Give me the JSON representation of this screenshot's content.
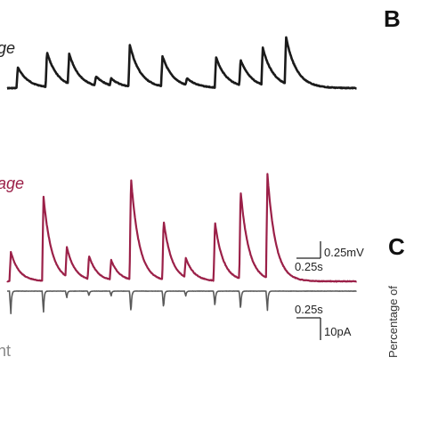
{
  "panels": {
    "b": {
      "label": "B"
    },
    "c": {
      "label": "C"
    }
  },
  "trace_labels": {
    "top": "ge",
    "middle": "age",
    "bottom": "nt"
  },
  "side_axis_label": "Percentage of",
  "scale_bars": {
    "voltage_amplitude": "0.25mV",
    "voltage_time": "0.25s",
    "current_time": "0.25s",
    "current_amplitude": "10pA"
  },
  "colors": {
    "trace_top": "#1a1a1a",
    "trace_middle": "#9b2048",
    "trace_bottom": "#5a5a5a",
    "text": "#222222",
    "middle_label": "#9b2048",
    "bottom_label": "#888888"
  },
  "chart_data": {
    "type": "line",
    "x_unit": "s",
    "series": [
      {
        "trace": "top",
        "baseline_mV": 0,
        "events": [
          {
            "t": 0.08,
            "amp": 0.09
          },
          {
            "t": 0.33,
            "amp": 0.15
          },
          {
            "t": 0.52,
            "amp": 0.13
          },
          {
            "t": 0.75,
            "amp": 0.04
          },
          {
            "t": 0.88,
            "amp": 0.03
          },
          {
            "t": 1.04,
            "amp": 0.18
          },
          {
            "t": 1.32,
            "amp": 0.13
          },
          {
            "t": 1.53,
            "amp": 0.03
          },
          {
            "t": 1.78,
            "amp": 0.13
          },
          {
            "t": 1.99,
            "amp": 0.11
          },
          {
            "t": 2.18,
            "amp": 0.16
          },
          {
            "t": 2.38,
            "amp": 0.2
          }
        ]
      },
      {
        "trace": "middle",
        "baseline_mV": 0,
        "events": [
          {
            "t": 0.02,
            "amp": 0.15
          },
          {
            "t": 0.3,
            "amp": 0.43
          },
          {
            "t": 0.5,
            "amp": 0.15
          },
          {
            "t": 0.69,
            "amp": 0.12
          },
          {
            "t": 0.88,
            "amp": 0.1
          },
          {
            "t": 1.05,
            "amp": 0.52
          },
          {
            "t": 1.33,
            "amp": 0.3
          },
          {
            "t": 1.52,
            "amp": 0.1
          },
          {
            "t": 1.77,
            "amp": 0.3
          },
          {
            "t": 1.99,
            "amp": 0.45
          },
          {
            "t": 2.22,
            "amp": 0.53
          }
        ]
      },
      {
        "trace": "bottom",
        "baseline_pA": 0,
        "events": [
          {
            "t": 0.02,
            "amp": -14
          },
          {
            "t": 0.3,
            "amp": -13
          },
          {
            "t": 0.5,
            "amp": -4
          },
          {
            "t": 0.69,
            "amp": -3
          },
          {
            "t": 0.88,
            "amp": -3
          },
          {
            "t": 1.05,
            "amp": -14
          },
          {
            "t": 1.33,
            "amp": -11
          },
          {
            "t": 1.52,
            "amp": -3
          },
          {
            "t": 1.77,
            "amp": -10
          },
          {
            "t": 1.99,
            "amp": -12
          },
          {
            "t": 2.22,
            "amp": -12
          }
        ]
      }
    ]
  }
}
